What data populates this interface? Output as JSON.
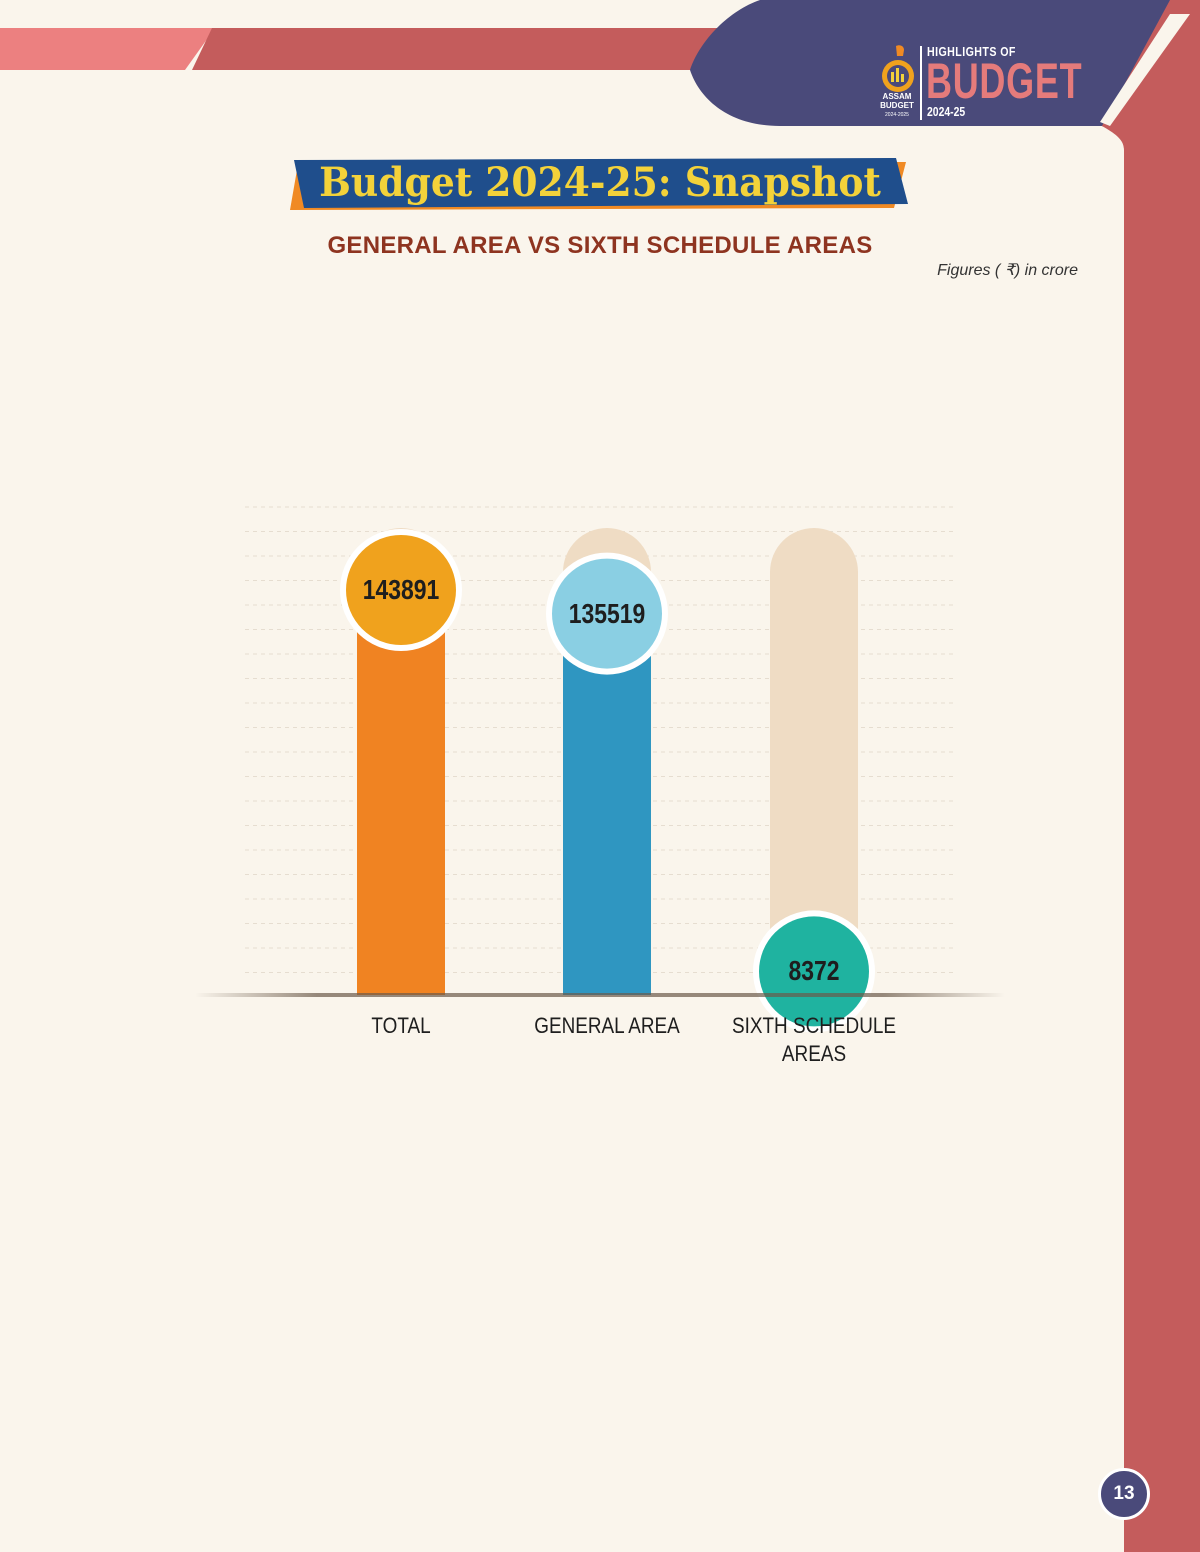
{
  "header": {
    "logo_assam": "ASSAM",
    "logo_budget": "BUDGET",
    "logo_years": "2024-2025",
    "highlights_label": "HIGHLIGHTS OF",
    "budget_label": "BUDGET",
    "year_label": "2024-25"
  },
  "page": {
    "title": "Budget 2024-25: Snapshot",
    "subtitle": "GENERAL AREA VS SIXTH SCHEDULE AREAS",
    "units_note": "Figures ( ₹) in crore",
    "page_number": "13"
  },
  "colors": {
    "header_navy": "#4a4a7a",
    "accent_red": "#c45c5c",
    "accent_pink": "#e57b7b",
    "banner_blue": "#1f4e8c",
    "banner_orange": "#f08a24",
    "title_yellow": "#f3d23a",
    "subtitle_brown": "#8e3420",
    "track": "#efdcc4"
  },
  "chart_data": {
    "type": "bar",
    "title": "",
    "xlabel": "",
    "ylabel": "",
    "categories": [
      "TOTAL",
      "GENERAL AREA",
      "SIXTH SCHEDULE AREAS"
    ],
    "category_lines": [
      [
        "TOTAL"
      ],
      [
        "GENERAL AREA"
      ],
      [
        "SIXTH SCHEDULE",
        "AREAS"
      ]
    ],
    "values": [
      143891,
      135519,
      8372
    ],
    "value_labels": [
      "143891",
      "135519",
      "8372"
    ],
    "ylim": [
      0,
      143891
    ],
    "grid": true,
    "legend": "none",
    "bar_colors": [
      "#f08322",
      "#2f96c1",
      "#1aa08a"
    ],
    "bubble_colors": [
      "#f0a21d",
      "#8acfe3",
      "#1fb3a0"
    ]
  }
}
